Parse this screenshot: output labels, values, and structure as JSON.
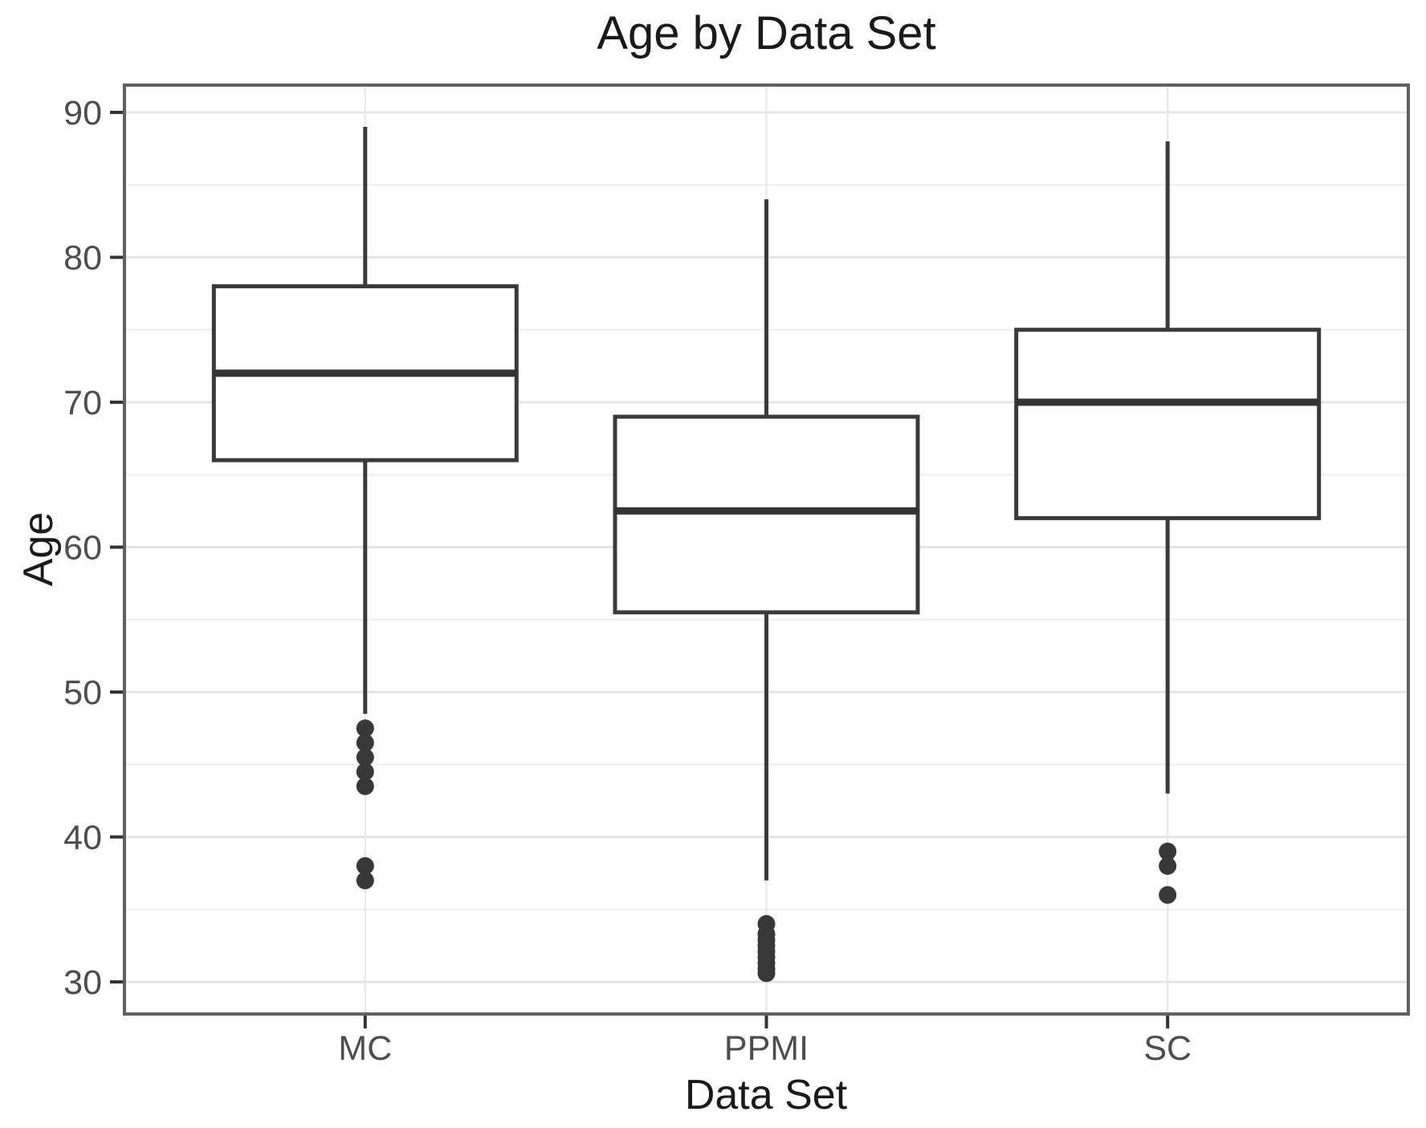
{
  "chart_data": {
    "type": "boxplot",
    "title": "Age by Data Set",
    "xlabel": "Data Set",
    "ylabel": "Age",
    "categories": [
      "MC",
      "PPMI",
      "SC"
    ],
    "y_ticks": [
      30,
      40,
      50,
      60,
      70,
      80,
      90
    ],
    "y_minor_gridlines": [
      35,
      45,
      55,
      65,
      75,
      85
    ],
    "ylim": [
      27.8,
      91.9
    ],
    "grid": "horizontal major and minor lines, vertical line at each category",
    "legend": "none",
    "series": [
      {
        "name": "MC",
        "whisker_low": 48.5,
        "q1": 66,
        "median": 72,
        "q3": 78,
        "whisker_high": 89,
        "outliers": [
          47.5,
          46.5,
          45.5,
          44.5,
          43.5,
          38,
          37
        ]
      },
      {
        "name": "PPMI",
        "whisker_low": 37,
        "q1": 55.5,
        "median": 62.5,
        "q3": 69,
        "whisker_high": 84,
        "outliers": [
          34.0,
          33.3,
          32.9,
          32.5,
          32.1,
          31.7,
          31.3,
          30.9,
          30.6
        ]
      },
      {
        "name": "SC",
        "whisker_low": 43,
        "q1": 62,
        "median": 70,
        "q3": 75,
        "whisker_high": 88,
        "outliers": [
          39,
          38,
          36
        ]
      }
    ],
    "colors": {
      "background": "#ffffff",
      "panel_background": "#ffffff",
      "panel_border": "#606060",
      "box_stroke": "#3a3a3a",
      "median_stroke": "#333333",
      "outlier_fill": "#383838",
      "gridline_major": "#e3e3e3",
      "gridline_minor": "#f0f0f0",
      "gridline_vertical": "#e9e9e9",
      "tick_mark": "#333333",
      "tick_label": "#4d4d4d",
      "text": "#1a1a1a"
    }
  }
}
